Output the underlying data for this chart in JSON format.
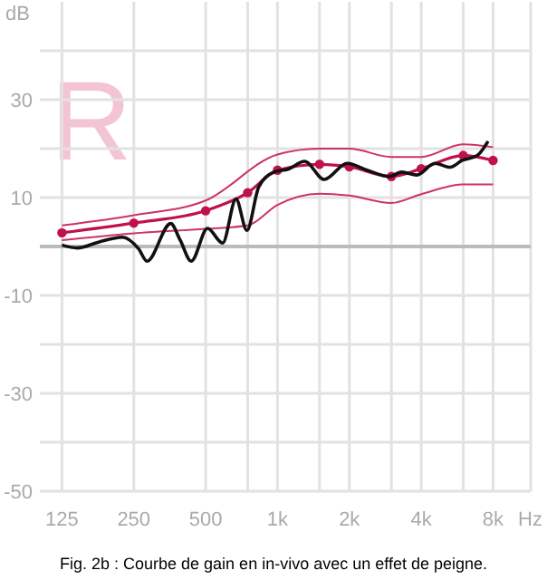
{
  "chart_data": {
    "type": "line",
    "ylabel": "dB",
    "xlabel": "Hz",
    "log": "x",
    "grid": true,
    "xlim": [
      101,
      11500
    ],
    "ylim": [
      -50,
      50
    ],
    "xticks": [
      125,
      250,
      500,
      {
        "value": 750,
        "label": null
      },
      {
        "value": 1000,
        "label": "1k"
      },
      {
        "value": 1500,
        "label": null
      },
      {
        "value": 2000,
        "label": "2k"
      },
      {
        "value": 3000,
        "label": null
      },
      {
        "value": 4000,
        "label": "4k"
      },
      {
        "value": 6000,
        "label": null
      },
      {
        "value": 8000,
        "label": "8k"
      }
    ],
    "yticks": [
      -50,
      {
        "value": -40,
        "label": null
      },
      -30,
      {
        "value": -20,
        "label": null
      },
      -10,
      {
        "value": 0,
        "label": null
      },
      10,
      {
        "value": 20,
        "label": null
      },
      30,
      {
        "value": 40,
        "label": null
      }
    ],
    "ref_lines": [
      {
        "axis": "y",
        "value": 0,
        "color": "#bbbbbb"
      }
    ],
    "series": [
      {
        "color": "#cc3366",
        "marker": "none",
        "x": [
          125,
          250,
          500,
          1000,
          1500,
          2000,
          3000,
          4000,
          6000,
          8000
        ],
        "values": [
          4.3,
          6.4,
          9.4,
          18.8,
          20,
          20,
          18.3,
          18.3,
          20.9,
          20.3
        ]
      },
      {
        "color": "#cc3366",
        "marker": "none",
        "x": [
          125,
          250,
          500,
          750,
          1000,
          1500,
          2000,
          3000,
          4000,
          6000,
          8000
        ],
        "values": [
          1.3,
          2.7,
          3.6,
          4.3,
          8.5,
          10.8,
          10.4,
          8.9,
          10.7,
          12.7,
          12.7
        ]
      },
      {
        "color": "#c0114f",
        "marker": "circle",
        "x": [
          125,
          250,
          500,
          750,
          1000,
          1500,
          2000,
          3000,
          4000,
          6000,
          8000
        ],
        "values": [
          2.8,
          4.8,
          7.3,
          11,
          15.6,
          16.8,
          16.3,
          14.3,
          15.9,
          18.6,
          17.6
        ]
      },
      {
        "color": "#111111",
        "marker": "none",
        "x": [
          125,
          145,
          178,
          224,
          262,
          284,
          357,
          391,
          435,
          509,
          589,
          670,
          744,
          835,
          968,
          1107,
          1298,
          1570,
          1958,
          2400,
          2940,
          3310,
          3835,
          4565,
          5280,
          5940,
          6870,
          7620
        ],
        "values": [
          0.3,
          -0.3,
          0.9,
          1.9,
          -0.5,
          -3,
          4.7,
          1.3,
          -3,
          3.7,
          0.7,
          9.7,
          3.3,
          12.2,
          15.2,
          15.8,
          17.4,
          13.7,
          17,
          15.5,
          14.3,
          15.2,
          14.6,
          17,
          16.2,
          17.6,
          18.6,
          21.5
        ]
      }
    ],
    "annotations": [
      "R",
      "Fig. 2b : Courbe de gain en in-vivo avec un effet de peigne."
    ]
  }
}
